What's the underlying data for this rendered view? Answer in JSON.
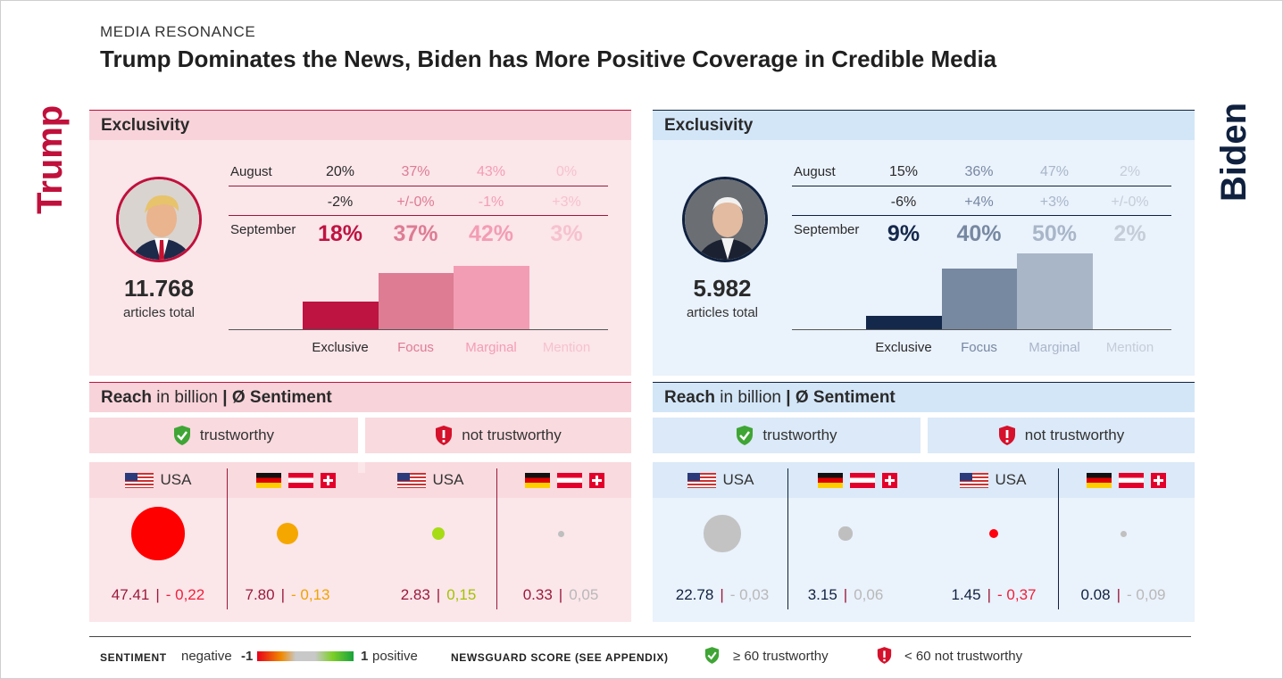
{
  "header": {
    "kicker": "MEDIA RESONANCE",
    "title": "Trump Dominates the News, Biden has More Positive Coverage in Credible Media"
  },
  "sections": {
    "exclusivity": "Exclusivity",
    "reach_bold": "Reach",
    "reach_rest": " in billion ",
    "reach_sep": "|",
    "sentiment": " Ø Sentiment",
    "trustworthy": "trustworthy",
    "not_trustworthy": "not trustworthy",
    "usa": "USA"
  },
  "colors": {
    "trump_accent": "#c0103c",
    "biden_accent": "#10213f",
    "trustworthy_icon": "#3fa535",
    "not_trustworthy_icon": "#d5112b"
  },
  "icons": [
    "shield-check-icon",
    "shield-exclamation-icon",
    "flag-usa-icon",
    "flag-germany-icon",
    "flag-austria-icon",
    "flag-switzerland-icon"
  ],
  "chart_data": [
    {
      "type": "bar",
      "name": "Trump",
      "categories": [
        "Exclusive",
        "Focus",
        "Marginal",
        "Mention"
      ],
      "row_labels": {
        "august": "August",
        "september": "September"
      },
      "august": [
        "20%",
        "37%",
        "43%",
        "0%"
      ],
      "change": [
        "-2%",
        "+/-0%",
        "-1%",
        "+3%"
      ],
      "september": [
        "18%",
        "37%",
        "42%",
        "3%"
      ],
      "values": [
        18,
        37,
        42,
        3
      ],
      "ylim": [
        0,
        50
      ],
      "colors": [
        "#be1441",
        "#dd7c93",
        "#f39db4",
        "#f6c2cf"
      ],
      "articles_total": "11.768",
      "articles_label": "articles total"
    },
    {
      "type": "bar",
      "name": "Biden",
      "categories": [
        "Exclusive",
        "Focus",
        "Marginal",
        "Mention"
      ],
      "row_labels": {
        "august": "August",
        "september": "September"
      },
      "august": [
        "15%",
        "36%",
        "47%",
        "2%"
      ],
      "change": [
        "-6%",
        "+4%",
        "+3%",
        "+/-0%"
      ],
      "september": [
        "9%",
        "40%",
        "50%",
        "2%"
      ],
      "values": [
        9,
        40,
        50,
        2
      ],
      "ylim": [
        0,
        50
      ],
      "colors": [
        "#14284b",
        "#7788a1",
        "#a8b6c8",
        "#c4cdd8"
      ],
      "articles_total": "5.982",
      "articles_label": "articles total"
    },
    {
      "type": "scatter",
      "name": "Trump reach and sentiment",
      "groups": [
        {
          "trust": "trustworthy",
          "region": "USA",
          "reach": "47.41",
          "sentiment": "- 0,22",
          "reach_value": 47.41,
          "sentiment_value": -0.22,
          "color": "#ff0000",
          "sentiment_color": "#f0203a"
        },
        {
          "trust": "trustworthy",
          "region": "DACH",
          "reach": "7.80",
          "sentiment": "- 0,13",
          "reach_value": 7.8,
          "sentiment_value": -0.13,
          "color": "#f5a700",
          "sentiment_color": "#f0a300"
        },
        {
          "trust": "not trustworthy",
          "region": "USA",
          "reach": "2.83",
          "sentiment": "0,15",
          "reach_value": 2.83,
          "sentiment_value": 0.15,
          "color": "#a6dc14",
          "sentiment_color": "#a2c300"
        },
        {
          "trust": "not trustworthy",
          "region": "DACH",
          "reach": "0.33",
          "sentiment": "0,05",
          "reach_value": 0.33,
          "sentiment_value": 0.05,
          "color": "#bfbfbf",
          "sentiment_color": "#b8b8b8"
        }
      ]
    },
    {
      "type": "scatter",
      "name": "Biden reach and sentiment",
      "groups": [
        {
          "trust": "trustworthy",
          "region": "USA",
          "reach": "22.78",
          "sentiment": "- 0,03",
          "reach_value": 22.78,
          "sentiment_value": -0.03,
          "color": "#c3c3c3",
          "sentiment_color": "#b8b8b8"
        },
        {
          "trust": "trustworthy",
          "region": "DACH",
          "reach": "3.15",
          "sentiment": "0,06",
          "reach_value": 3.15,
          "sentiment_value": 0.06,
          "color": "#bfbfbf",
          "sentiment_color": "#b8b8b8"
        },
        {
          "trust": "not trustworthy",
          "region": "USA",
          "reach": "1.45",
          "sentiment": "- 0,37",
          "reach_value": 1.45,
          "sentiment_value": -0.37,
          "color": "#ff0010",
          "sentiment_color": "#f0203a"
        },
        {
          "trust": "not trustworthy",
          "region": "DACH",
          "reach": "0.08",
          "sentiment": "- 0,09",
          "reach_value": 0.08,
          "sentiment_value": -0.09,
          "color": "#c0c0c0",
          "sentiment_color": "#b8b8b8"
        }
      ]
    }
  ],
  "legend": {
    "sentiment_key": "SENTIMENT",
    "negative": "negative",
    "neg_value": "-1",
    "pos_value": "1",
    "positive": "positive",
    "newsguard_key": "NEWSGUARD SCORE (SEE APPENDIX)",
    "trust_label": "≥ 60 trustworthy",
    "not_trust_label": "< 60 not trustworthy"
  }
}
